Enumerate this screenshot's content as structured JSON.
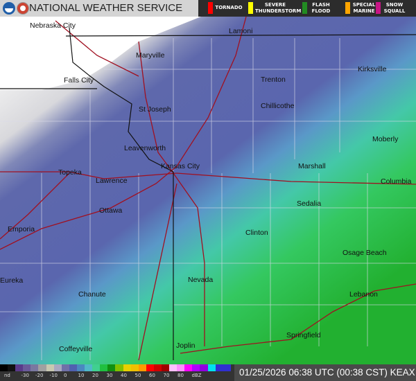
{
  "header": {
    "title": "NATIONAL WEATHER SERVICE"
  },
  "warnings": [
    {
      "label": "TORNADO",
      "color": "#ff0000"
    },
    {
      "label": "SEVERE THUNDERSTORM",
      "color": "#ffff00"
    },
    {
      "label": "FLASH FLOOD",
      "color": "#228b22"
    },
    {
      "label": "SPECIAL MARINE",
      "color": "#ffa500"
    },
    {
      "label": "SNOW SQUALL",
      "color": "#c71585"
    }
  ],
  "cities": [
    {
      "name": "Nebraska City"
    },
    {
      "name": "Lamoni"
    },
    {
      "name": "Maryville"
    },
    {
      "name": "Falls City"
    },
    {
      "name": "Trenton"
    },
    {
      "name": "Kirksville"
    },
    {
      "name": "St Joseph"
    },
    {
      "name": "Chillicothe"
    },
    {
      "name": "Moberly"
    },
    {
      "name": "Leavenworth"
    },
    {
      "name": "Kansas City"
    },
    {
      "name": "Marshall"
    },
    {
      "name": "Topeka"
    },
    {
      "name": "Lawrence"
    },
    {
      "name": "Columbia"
    },
    {
      "name": "Sedalia"
    },
    {
      "name": "Ottawa"
    },
    {
      "name": "Clinton"
    },
    {
      "name": "Emporia"
    },
    {
      "name": "Osage Beach"
    },
    {
      "name": "Eureka"
    },
    {
      "name": "Nevada"
    },
    {
      "name": "Chanute"
    },
    {
      "name": "Lebanon"
    },
    {
      "name": "Springfield"
    },
    {
      "name": "Joplin"
    },
    {
      "name": "Coffeyville"
    }
  ],
  "legend": {
    "labels": [
      "nd",
      "-30",
      "-20",
      "-10",
      "0",
      "10",
      "20",
      "30",
      "40",
      "50",
      "60",
      "70",
      "80",
      "dBZ"
    ],
    "colors": [
      "#000000",
      "#111111",
      "#5a3a8a",
      "#6a5a9a",
      "#7a78a0",
      "#a0a0a0",
      "#c8c8b0",
      "#a8a8c0",
      "#7070a8",
      "#5060b0",
      "#4a88c0",
      "#50b8c8",
      "#40d090",
      "#20c040",
      "#109010",
      "#80c000",
      "#e8d000",
      "#f0c000",
      "#ff9a00",
      "#ff0000",
      "#d00000",
      "#a00000",
      "#ffc0ff",
      "#ff90ff",
      "#ff00ff",
      "#b000ff",
      "#9000e0",
      "#00e0f0",
      "#3030d0",
      "#3030d0"
    ]
  },
  "footer": {
    "timestamp": "01/25/2026 06:38 UTC (00:38 CST) KEAX"
  }
}
